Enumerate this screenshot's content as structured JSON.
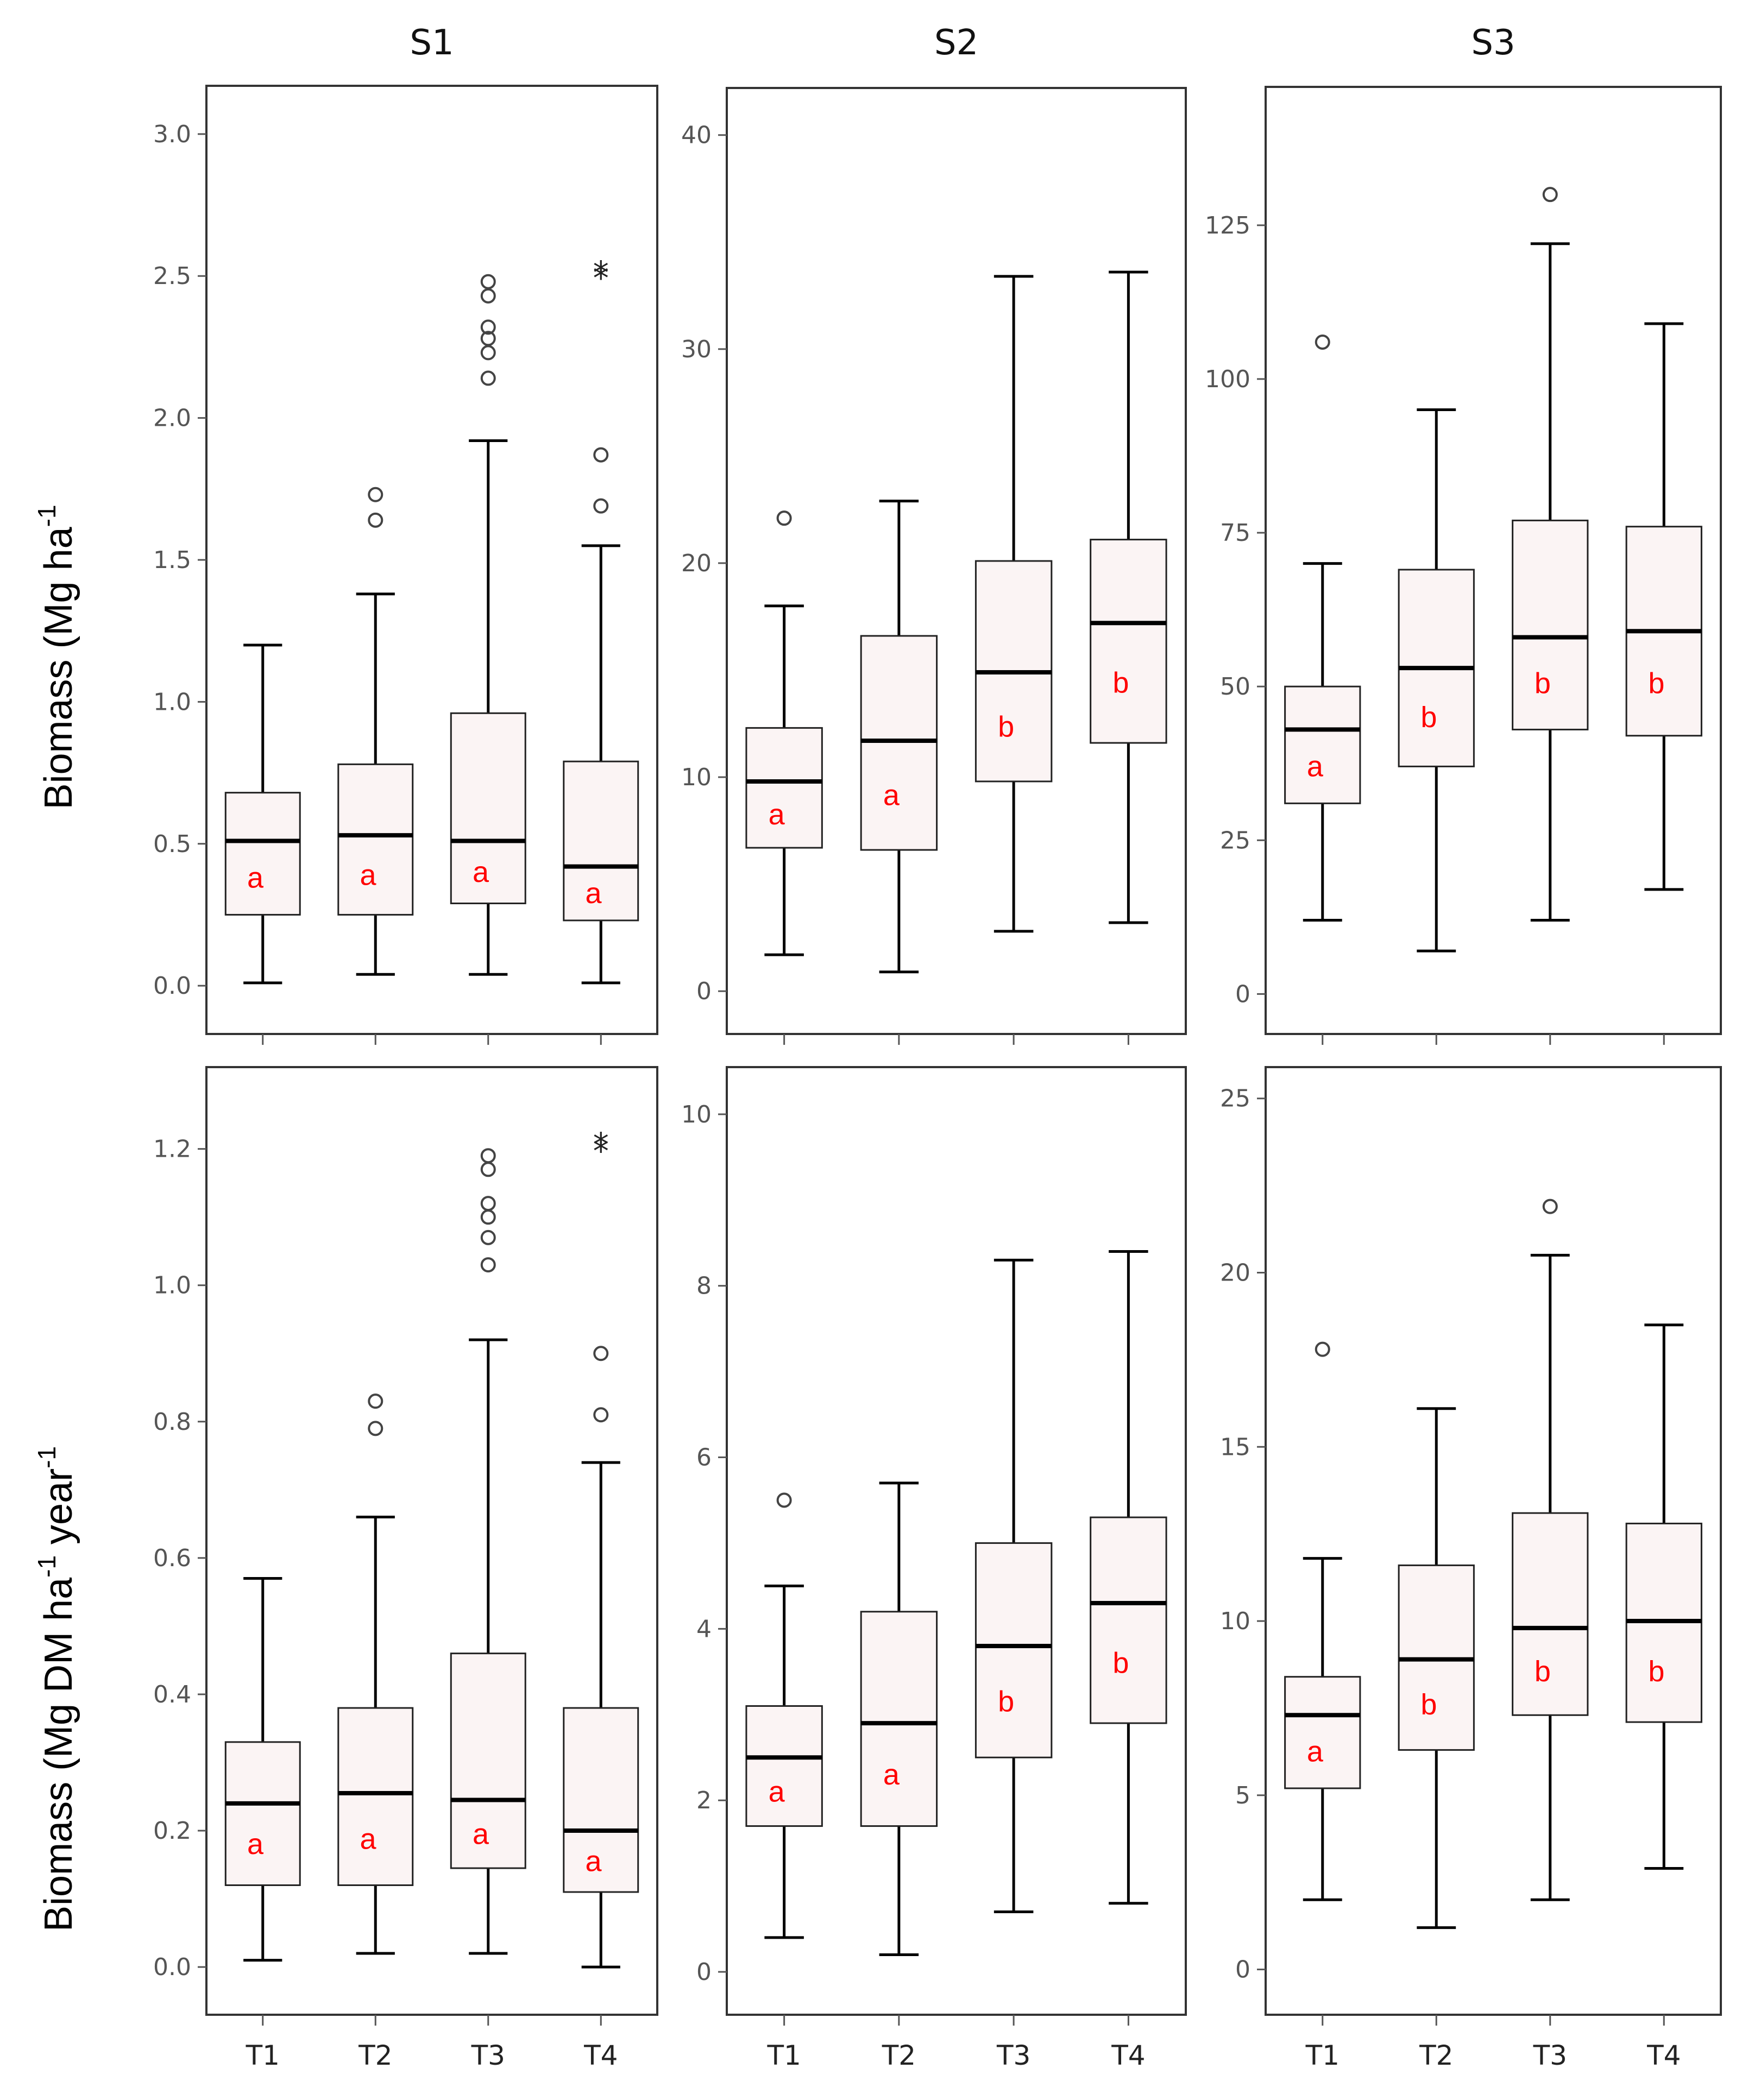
{
  "colors": {
    "box_fill": "#fbf4f4",
    "letter": "#ff0000",
    "line": "#000000",
    "frame": "#333333"
  },
  "ylabels": {
    "top": {
      "main": "Biomass (Mg ha",
      "sup": "-1"
    },
    "bottom": {
      "main": "Biomass (Mg DM ha",
      "sup1": "-1",
      "mid": " year",
      "sup2": "-1"
    }
  },
  "chart_data": [
    {
      "type": "box",
      "title": "S1",
      "categories": [
        "T1",
        "T2",
        "T3",
        "T4"
      ],
      "ylim": [
        -0.17,
        3.17
      ],
      "yticks": [
        "0.0",
        "0.5",
        "1.0",
        "1.5",
        "2.0",
        "2.5",
        "3.0"
      ],
      "show_xticklabels": false,
      "boxes": [
        {
          "min": 0.01,
          "q1": 0.25,
          "median": 0.51,
          "q3": 0.68,
          "max": 1.2,
          "outliers": [],
          "extremes": [],
          "letter": "a"
        },
        {
          "min": 0.04,
          "q1": 0.25,
          "median": 0.53,
          "q3": 0.78,
          "max": 1.38,
          "outliers": [
            1.64,
            1.73
          ],
          "extremes": [],
          "letter": "a"
        },
        {
          "min": 0.04,
          "q1": 0.29,
          "median": 0.51,
          "q3": 0.96,
          "max": 1.92,
          "outliers": [
            2.14,
            2.23,
            2.28,
            2.32,
            2.43,
            2.48
          ],
          "extremes": [],
          "letter": "a"
        },
        {
          "min": 0.01,
          "q1": 0.23,
          "median": 0.42,
          "q3": 0.79,
          "max": 1.55,
          "outliers": [
            1.69,
            1.87
          ],
          "extremes": [
            2.5,
            2.52
          ],
          "letter": "a"
        }
      ]
    },
    {
      "type": "box",
      "title": "S2",
      "categories": [
        "T1",
        "T2",
        "T3",
        "T4"
      ],
      "ylim": [
        -2,
        42.2
      ],
      "yticks": [
        "0",
        "10",
        "20",
        "30",
        "40"
      ],
      "show_xticklabels": false,
      "boxes": [
        {
          "min": 1.7,
          "q1": 6.7,
          "median": 9.8,
          "q3": 12.3,
          "max": 18.0,
          "outliers": [
            22.1
          ],
          "extremes": [],
          "letter": "a"
        },
        {
          "min": 0.9,
          "q1": 6.6,
          "median": 11.7,
          "q3": 16.6,
          "max": 22.9,
          "outliers": [],
          "extremes": [],
          "letter": "a"
        },
        {
          "min": 2.8,
          "q1": 9.8,
          "median": 14.9,
          "q3": 20.1,
          "max": 33.4,
          "outliers": [],
          "extremes": [],
          "letter": "b"
        },
        {
          "min": 3.2,
          "q1": 11.6,
          "median": 17.2,
          "q3": 21.1,
          "max": 33.6,
          "outliers": [],
          "extremes": [],
          "letter": "b"
        }
      ]
    },
    {
      "type": "box",
      "title": "S3",
      "categories": [
        "T1",
        "T2",
        "T3",
        "T4"
      ],
      "ylim": [
        -6.5,
        147.5
      ],
      "yticks": [
        "0",
        "25",
        "50",
        "75",
        "100",
        "125"
      ],
      "show_xticklabels": false,
      "boxes": [
        {
          "min": 12,
          "q1": 31,
          "median": 43,
          "q3": 50,
          "max": 70,
          "outliers": [
            106
          ],
          "extremes": [],
          "letter": "a"
        },
        {
          "min": 7,
          "q1": 37,
          "median": 53,
          "q3": 69,
          "max": 95,
          "outliers": [],
          "extremes": [],
          "letter": "b"
        },
        {
          "min": 12,
          "q1": 43,
          "median": 58,
          "q3": 77,
          "max": 122,
          "outliers": [
            130
          ],
          "extremes": [],
          "letter": "b"
        },
        {
          "min": 17,
          "q1": 42,
          "median": 59,
          "q3": 76,
          "max": 109,
          "outliers": [],
          "extremes": [],
          "letter": "b"
        }
      ]
    },
    {
      "type": "box",
      "title": "",
      "categories": [
        "T1",
        "T2",
        "T3",
        "T4"
      ],
      "ylim": [
        -0.07,
        1.32
      ],
      "yticks": [
        "0.0",
        "0.2",
        "0.4",
        "0.6",
        "0.8",
        "1.0",
        "1.2"
      ],
      "show_xticklabels": true,
      "boxes": [
        {
          "min": 0.01,
          "q1": 0.12,
          "median": 0.24,
          "q3": 0.33,
          "max": 0.57,
          "outliers": [],
          "extremes": [],
          "letter": "a"
        },
        {
          "min": 0.02,
          "q1": 0.12,
          "median": 0.255,
          "q3": 0.38,
          "max": 0.66,
          "outliers": [
            0.79,
            0.83
          ],
          "extremes": [],
          "letter": "a"
        },
        {
          "min": 0.02,
          "q1": 0.145,
          "median": 0.245,
          "q3": 0.46,
          "max": 0.92,
          "outliers": [
            1.03,
            1.07,
            1.1,
            1.12,
            1.17,
            1.19
          ],
          "extremes": [],
          "letter": "a"
        },
        {
          "min": 0.0,
          "q1": 0.11,
          "median": 0.2,
          "q3": 0.38,
          "max": 0.74,
          "outliers": [
            0.81,
            0.9
          ],
          "extremes": [
            1.2,
            1.21
          ],
          "letter": "a"
        }
      ]
    },
    {
      "type": "box",
      "title": "",
      "categories": [
        "T1",
        "T2",
        "T3",
        "T4"
      ],
      "ylim": [
        -0.5,
        10.55
      ],
      "yticks": [
        "0",
        "2",
        "4",
        "6",
        "8",
        "10"
      ],
      "show_xticklabels": true,
      "boxes": [
        {
          "min": 0.4,
          "q1": 1.7,
          "median": 2.5,
          "q3": 3.1,
          "max": 4.5,
          "outliers": [
            5.5
          ],
          "extremes": [],
          "letter": "a"
        },
        {
          "min": 0.2,
          "q1": 1.7,
          "median": 2.9,
          "q3": 4.2,
          "max": 5.7,
          "outliers": [],
          "extremes": [],
          "letter": "a"
        },
        {
          "min": 0.7,
          "q1": 2.5,
          "median": 3.8,
          "q3": 5.0,
          "max": 8.3,
          "outliers": [],
          "extremes": [],
          "letter": "b"
        },
        {
          "min": 0.8,
          "q1": 2.9,
          "median": 4.3,
          "q3": 5.3,
          "max": 8.4,
          "outliers": [],
          "extremes": [],
          "letter": "b"
        }
      ]
    },
    {
      "type": "box",
      "title": "",
      "categories": [
        "T1",
        "T2",
        "T3",
        "T4"
      ],
      "ylim": [
        -1.3,
        25.9
      ],
      "yticks": [
        "0",
        "5",
        "10",
        "15",
        "20",
        "25"
      ],
      "show_xticklabels": true,
      "boxes": [
        {
          "min": 2,
          "q1": 5.2,
          "median": 7.3,
          "q3": 8.4,
          "max": 11.8,
          "outliers": [
            17.8
          ],
          "extremes": [],
          "letter": "a"
        },
        {
          "min": 1.2,
          "q1": 6.3,
          "median": 8.9,
          "q3": 11.6,
          "max": 16.1,
          "outliers": [],
          "extremes": [],
          "letter": "b"
        },
        {
          "min": 2,
          "q1": 7.3,
          "median": 9.8,
          "q3": 13.1,
          "max": 20.5,
          "outliers": [
            21.9
          ],
          "extremes": [],
          "letter": "b"
        },
        {
          "min": 2.9,
          "q1": 7.1,
          "median": 10,
          "q3": 12.8,
          "max": 18.5,
          "outliers": [],
          "extremes": [],
          "letter": "b"
        }
      ]
    }
  ]
}
